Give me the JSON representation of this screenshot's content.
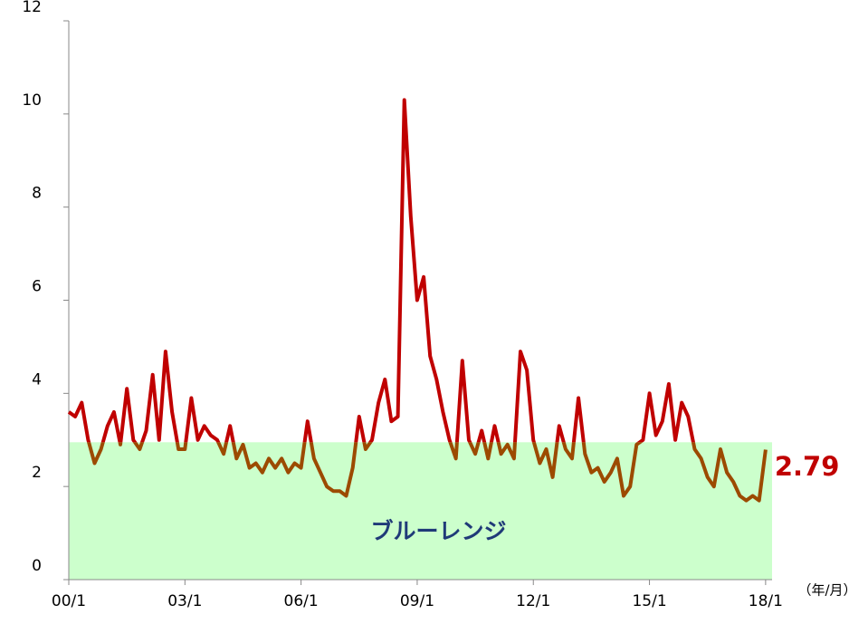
{
  "chart_data": {
    "type": "line",
    "x": [
      "00/1",
      "00/3",
      "00/5",
      "00/7",
      "00/9",
      "00/11",
      "01/1",
      "01/3",
      "01/5",
      "01/7",
      "01/9",
      "01/11",
      "02/1",
      "02/3",
      "02/5",
      "02/7",
      "02/9",
      "02/11",
      "03/1",
      "03/3",
      "03/5",
      "03/7",
      "03/9",
      "03/11",
      "04/1",
      "04/3",
      "04/5",
      "04/7",
      "04/9",
      "04/11",
      "05/1",
      "05/3",
      "05/5",
      "05/7",
      "05/9",
      "05/11",
      "06/1",
      "06/3",
      "06/5",
      "06/7",
      "06/9",
      "06/11",
      "07/1",
      "07/3",
      "07/5",
      "07/7",
      "07/9",
      "07/11",
      "08/1",
      "08/3",
      "08/5",
      "08/7",
      "08/9",
      "08/11",
      "09/1",
      "09/3",
      "09/5",
      "09/7",
      "09/9",
      "09/11",
      "10/1",
      "10/3",
      "10/5",
      "10/7",
      "10/9",
      "10/11",
      "11/1",
      "11/3",
      "11/5",
      "11/7",
      "11/9",
      "11/11",
      "12/1",
      "12/3",
      "12/5",
      "12/7",
      "12/9",
      "12/11",
      "13/1",
      "13/3",
      "13/5",
      "13/7",
      "13/9",
      "13/11",
      "14/1",
      "14/3",
      "14/5",
      "14/7",
      "14/9",
      "14/11",
      "15/1",
      "15/3",
      "15/5",
      "15/7",
      "15/9",
      "15/11",
      "16/1",
      "16/3",
      "16/5",
      "16/7",
      "16/9",
      "16/11",
      "17/1",
      "17/3",
      "17/5",
      "17/7",
      "17/9",
      "17/11",
      "18/1"
    ],
    "series": [
      {
        "color": "#c00000",
        "below_color": "#9c4a00",
        "values": [
          3.6,
          3.5,
          3.8,
          3.0,
          2.5,
          2.8,
          3.3,
          3.6,
          2.9,
          4.1,
          3.0,
          2.8,
          3.2,
          4.4,
          3.0,
          4.9,
          3.6,
          2.8,
          2.8,
          3.9,
          3.0,
          3.3,
          3.1,
          3.0,
          2.7,
          3.3,
          2.6,
          2.9,
          2.4,
          2.5,
          2.3,
          2.6,
          2.4,
          2.6,
          2.3,
          2.5,
          2.4,
          3.4,
          2.6,
          2.3,
          2.0,
          1.9,
          1.9,
          1.8,
          2.4,
          3.5,
          2.8,
          3.0,
          3.8,
          4.3,
          3.4,
          3.5,
          10.3,
          7.8,
          6.0,
          6.5,
          4.8,
          4.3,
          3.6,
          3.0,
          2.6,
          4.7,
          3.0,
          2.7,
          3.2,
          2.6,
          3.3,
          2.7,
          2.9,
          2.6,
          4.9,
          4.5,
          3.0,
          2.5,
          2.8,
          2.2,
          3.3,
          2.8,
          2.6,
          3.9,
          2.7,
          2.3,
          2.4,
          2.1,
          2.3,
          2.6,
          1.8,
          2.0,
          2.9,
          3.0,
          4.0,
          3.1,
          3.4,
          4.2,
          3.0,
          3.8,
          3.5,
          2.8,
          2.6,
          2.2,
          2.0,
          2.8,
          2.3,
          2.1,
          1.8,
          1.7,
          1.8,
          1.7,
          2.79
        ]
      }
    ],
    "last_value_label": "2.79",
    "band": {
      "from": 0,
      "to": 2.95,
      "color": "#ccffcc",
      "label": "ブルーレンジ"
    },
    "x_unit": "（年/月）",
    "xlim": [
      "00/1",
      "18/3"
    ],
    "xticks": [
      "00/1",
      "03/1",
      "06/1",
      "09/1",
      "12/1",
      "15/1",
      "18/1"
    ],
    "ylim": [
      0,
      12
    ],
    "yticks": [
      0,
      2,
      4,
      6,
      8,
      10,
      12
    ]
  }
}
